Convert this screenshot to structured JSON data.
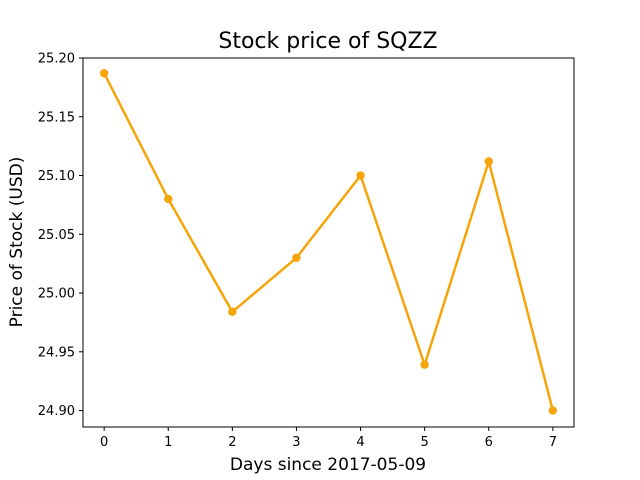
{
  "chart_data": {
    "type": "line",
    "title": "Stock price of SQZZ",
    "xlabel": "Days since 2017-05-09",
    "ylabel": "Price of Stock (USD)",
    "x": [
      0,
      1,
      2,
      3,
      4,
      5,
      6,
      7
    ],
    "series": [
      {
        "values": [
          25.187,
          25.08,
          24.984,
          25.03,
          25.1,
          24.939,
          25.112,
          24.9
        ],
        "color": "#f5a50a"
      }
    ],
    "xlim": [
      -0.33,
      7.33
    ],
    "ylim": [
      24.886,
      25.2
    ],
    "xticks": [
      0,
      1,
      2,
      3,
      4,
      5,
      6,
      7
    ],
    "yticks": [
      24.9,
      24.95,
      25.0,
      25.05,
      25.1,
      25.15,
      25.2
    ],
    "ytick_labels": [
      "24.90",
      "24.95",
      "25.00",
      "25.05",
      "25.10",
      "25.15",
      "25.20"
    ],
    "grid": false,
    "legend": "none"
  }
}
